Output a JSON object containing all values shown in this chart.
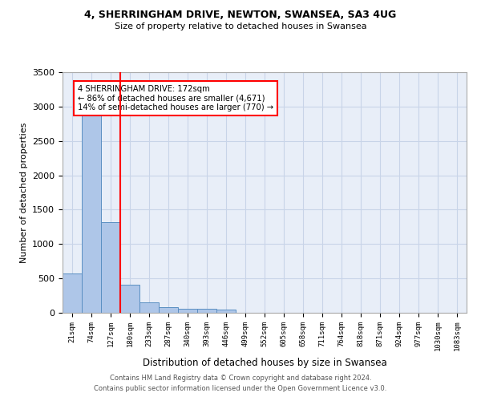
{
  "title_line1": "4, SHERRINGHAM DRIVE, NEWTON, SWANSEA, SA3 4UG",
  "title_line2": "Size of property relative to detached houses in Swansea",
  "xlabel": "Distribution of detached houses by size in Swansea",
  "ylabel": "Number of detached properties",
  "footer_line1": "Contains HM Land Registry data © Crown copyright and database right 2024.",
  "footer_line2": "Contains public sector information licensed under the Open Government Licence v3.0.",
  "categories": [
    "21sqm",
    "74sqm",
    "127sqm",
    "180sqm",
    "233sqm",
    "287sqm",
    "340sqm",
    "393sqm",
    "446sqm",
    "499sqm",
    "552sqm",
    "605sqm",
    "658sqm",
    "711sqm",
    "764sqm",
    "818sqm",
    "871sqm",
    "924sqm",
    "977sqm",
    "1030sqm",
    "1083sqm"
  ],
  "bar_heights": [
    570,
    2920,
    1320,
    410,
    155,
    80,
    60,
    55,
    45,
    0,
    0,
    0,
    0,
    0,
    0,
    0,
    0,
    0,
    0,
    0,
    0
  ],
  "bar_color": "#aec6e8",
  "bar_edge_color": "#5a8fc2",
  "grid_color": "#c8d4e8",
  "background_color": "#e8eef8",
  "annotation_line1": "4 SHERRINGHAM DRIVE: 172sqm",
  "annotation_line2": "← 86% of detached houses are smaller (4,671)",
  "annotation_line3": "14% of semi-detached houses are larger (770) →",
  "vline_x_index": 2.5,
  "ylim": [
    0,
    3500
  ],
  "yticks": [
    0,
    500,
    1000,
    1500,
    2000,
    2500,
    3000,
    3500
  ]
}
